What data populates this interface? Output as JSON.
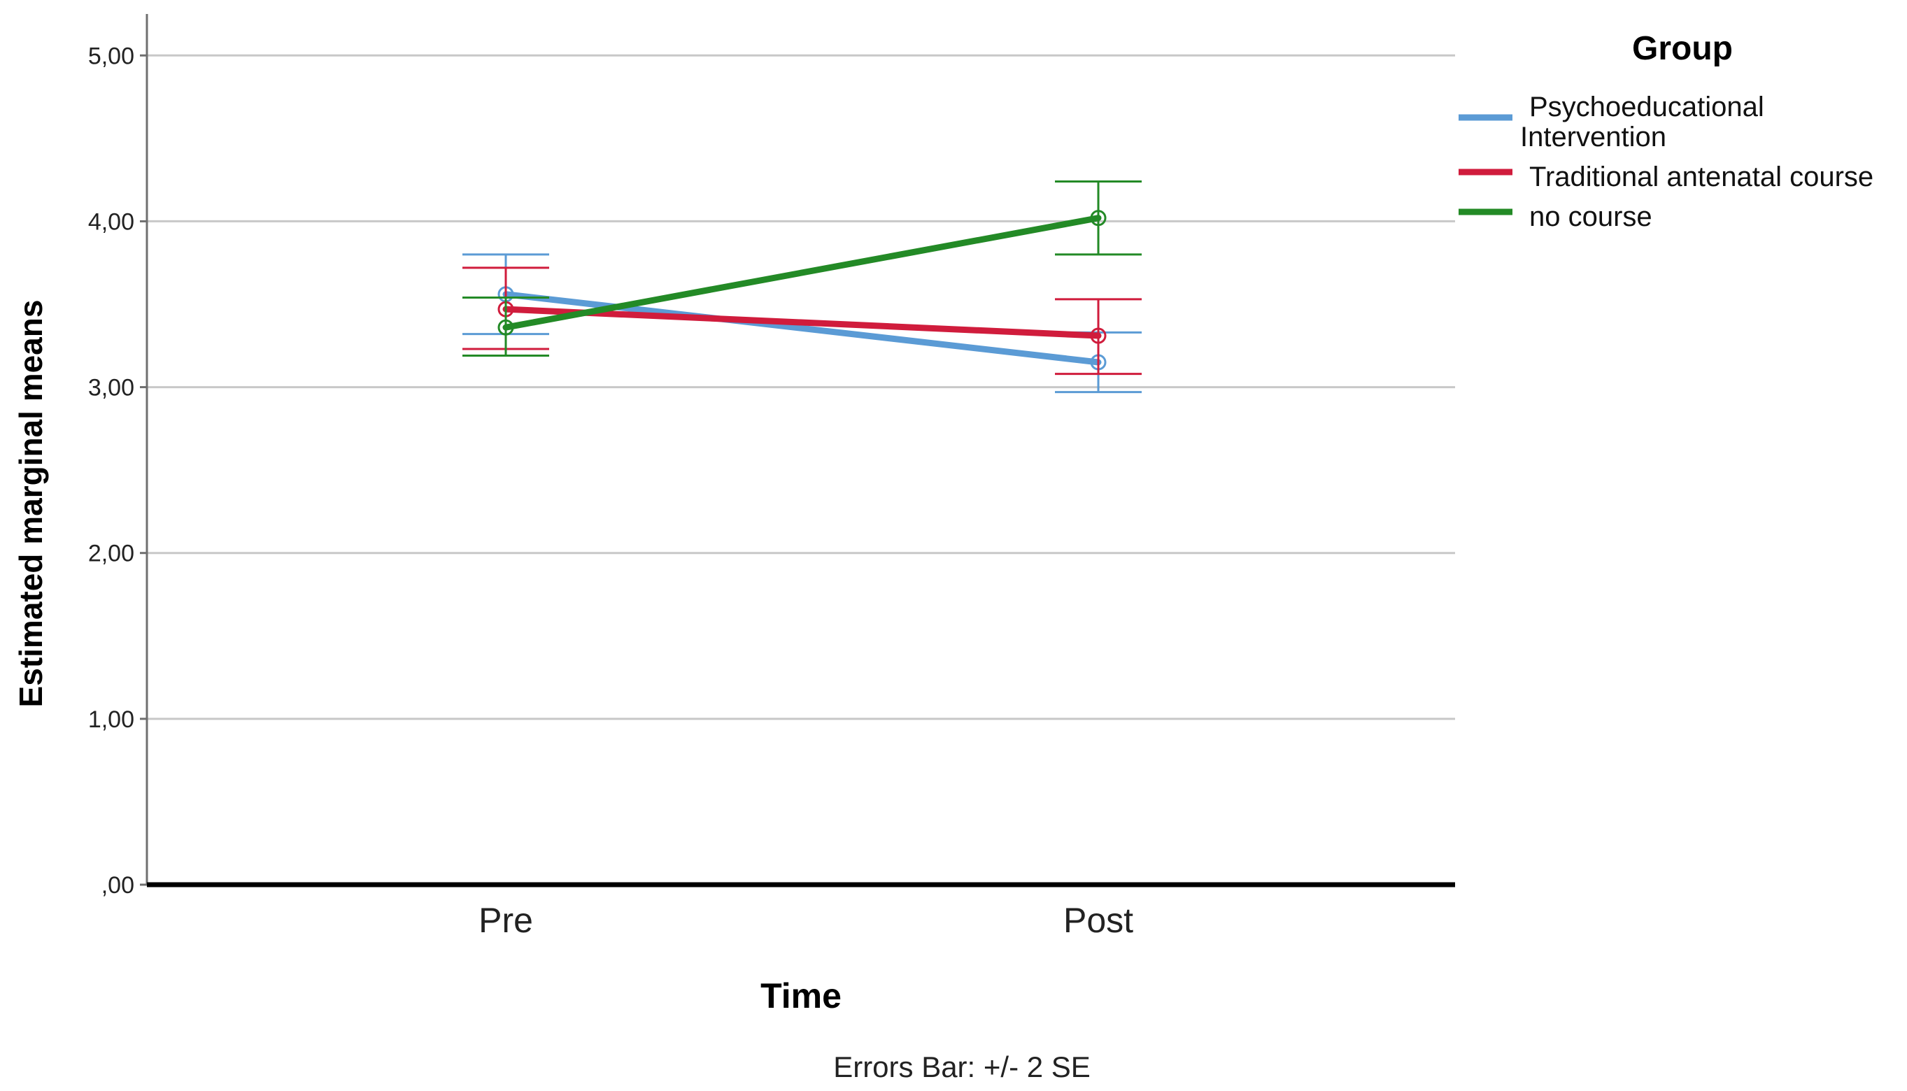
{
  "chart_data": {
    "type": "line",
    "xlabel": "Time",
    "ylabel": "Estimated marginal means",
    "footnote": "Errors Bar: +/- 2 SE",
    "categories": [
      "Pre",
      "Post"
    ],
    "ylim": [
      0,
      5.25
    ],
    "yticks": [
      {
        "value": 0,
        "label": ",00"
      },
      {
        "value": 1,
        "label": "1,00"
      },
      {
        "value": 2,
        "label": "2,00"
      },
      {
        "value": 3,
        "label": "3,00"
      },
      {
        "value": 4,
        "label": "4,00"
      },
      {
        "value": 5,
        "label": "5,00"
      }
    ],
    "grid": true,
    "legend": {
      "title": "Group",
      "position": "right",
      "items": [
        {
          "label_lines": [
            "Psychoeducational",
            "Intervention"
          ]
        },
        {
          "label_lines": [
            "Traditional antenatal course"
          ]
        },
        {
          "label_lines": [
            "no course"
          ]
        }
      ]
    },
    "series": [
      {
        "name": "Psychoeducational Intervention",
        "color": "#5b9bd5",
        "values": [
          3.56,
          3.15
        ],
        "lower": [
          3.32,
          2.97
        ],
        "upper": [
          3.8,
          3.33
        ]
      },
      {
        "name": "Traditional antenatal course",
        "color": "#d01c3c",
        "values": [
          3.47,
          3.31
        ],
        "lower": [
          3.23,
          3.08
        ],
        "upper": [
          3.72,
          3.53
        ]
      },
      {
        "name": "no course",
        "color": "#238a26",
        "values": [
          3.36,
          4.02
        ],
        "lower": [
          3.19,
          3.8
        ],
        "upper": [
          3.54,
          4.24
        ]
      }
    ]
  }
}
